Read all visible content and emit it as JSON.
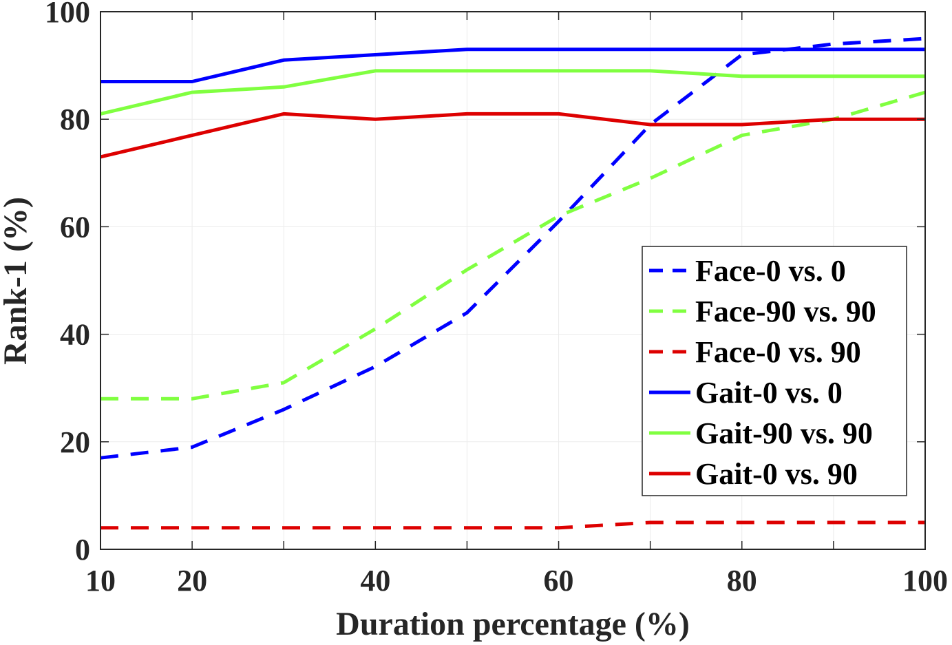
{
  "chart_data": {
    "type": "line",
    "title": "",
    "xlabel": "Duration percentage (%)",
    "ylabel": "Rank-1 (%)",
    "xlim": [
      10,
      100
    ],
    "ylim": [
      0,
      100
    ],
    "xticks": [
      "10",
      "20",
      "40",
      "60",
      "80",
      "100"
    ],
    "yticks": [
      "0",
      "20",
      "40",
      "60",
      "80",
      "100"
    ],
    "grid": true,
    "legend_position": "center-right",
    "x": [
      10,
      20,
      30,
      40,
      50,
      60,
      70,
      80,
      90,
      100
    ],
    "series": [
      {
        "name": "Face-0 vs. 0",
        "style": "dashed",
        "color": "#0000ff",
        "values": [
          17,
          19,
          26,
          34,
          44,
          61,
          79,
          92,
          94,
          95
        ]
      },
      {
        "name": "Face-90 vs. 90",
        "style": "dashed",
        "color": "#80ff40",
        "values": [
          28,
          28,
          31,
          41,
          52,
          62,
          69,
          77,
          80,
          85
        ]
      },
      {
        "name": "Face-0 vs. 90",
        "style": "dashed",
        "color": "#dd0000",
        "values": [
          4,
          4,
          4,
          4,
          4,
          4,
          5,
          5,
          5,
          5
        ]
      },
      {
        "name": "Gait-0 vs. 0",
        "style": "solid",
        "color": "#0000ff",
        "values": [
          87,
          87,
          91,
          92,
          93,
          93,
          93,
          93,
          93,
          93
        ]
      },
      {
        "name": "Gait-90 vs. 90",
        "style": "solid",
        "color": "#80ff40",
        "values": [
          81,
          85,
          86,
          89,
          89,
          89,
          89,
          88,
          88,
          88
        ]
      },
      {
        "name": "Gait-0 vs. 90",
        "style": "solid",
        "color": "#dd0000",
        "values": [
          73,
          77,
          81,
          80,
          81,
          81,
          79,
          79,
          80,
          80
        ]
      }
    ]
  }
}
